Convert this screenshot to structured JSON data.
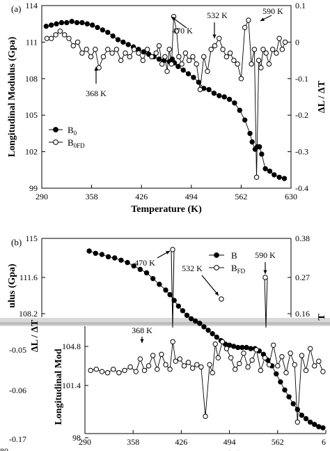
{
  "chart_data": [
    {
      "panel_label": "(a)",
      "type": "line",
      "xlabel": "Temperature (K)",
      "ylabel": "Longitudinal Modulus (Gpa)",
      "y2label": "ΔL / ΔT",
      "xlim": [
        290,
        630
      ],
      "ylim": [
        99,
        114
      ],
      "y2lim": [
        -0.4,
        0.1
      ],
      "xticks": [
        "290",
        "358",
        "426",
        "494",
        "562",
        "630"
      ],
      "yticks": [
        "99",
        "102",
        "105",
        "108",
        "111",
        "114"
      ],
      "y2ticks": [
        "-0.4",
        "-0.3",
        "-0.2",
        "-0.1",
        "0",
        "0.1"
      ],
      "legend": {
        "position": "lower-left",
        "entries": [
          {
            "main": "B",
            "sub": "0",
            "marker": "filled"
          },
          {
            "main": "B",
            "sub": "0FD",
            "marker": "open"
          }
        ]
      },
      "series": [
        {
          "marker": "filled",
          "axis": "left",
          "x": [
            296,
            303,
            310,
            317,
            324,
            331,
            338,
            345,
            352,
            359,
            366,
            373,
            380,
            387,
            394,
            401,
            408,
            415,
            422,
            429,
            436,
            443,
            450,
            457,
            464,
            468,
            471,
            476,
            483,
            490,
            497,
            504,
            511,
            518,
            525,
            532,
            539,
            546,
            553,
            560,
            567,
            574,
            577,
            581,
            584,
            587,
            590,
            595,
            601,
            607,
            614,
            621
          ],
          "y": [
            112.3,
            112.4,
            112.5,
            112.6,
            112.6,
            112.7,
            112.6,
            112.6,
            112.5,
            112.4,
            112.2,
            112.0,
            111.8,
            111.5,
            111.2,
            111.0,
            110.8,
            110.6,
            110.4,
            110.2,
            110.0,
            109.8,
            109.6,
            109.5,
            109.4,
            109.6,
            109.3,
            109.0,
            108.7,
            108.4,
            108.1,
            107.7,
            107.2,
            107.1,
            106.8,
            106.6,
            106.5,
            106.3,
            106.0,
            105.4,
            104.6,
            103.5,
            102.8,
            102.2,
            102.4,
            102.4,
            101.8,
            100.6,
            100.4,
            100.1,
            99.9,
            99.8
          ]
        },
        {
          "marker": "open",
          "axis": "right",
          "x": [
            297,
            303,
            309,
            315,
            321,
            327,
            333,
            339,
            345,
            351,
            357,
            363,
            368,
            374,
            380,
            386,
            392,
            398,
            404,
            410,
            416,
            422,
            428,
            434,
            440,
            446,
            450,
            454,
            458,
            461,
            464,
            467,
            470,
            474,
            477,
            481,
            486,
            491,
            496,
            501,
            506,
            511,
            516,
            521,
            526,
            532,
            537,
            542,
            547,
            552,
            557,
            562,
            567,
            572,
            576,
            580,
            583,
            586,
            589,
            592,
            596,
            600,
            605,
            610,
            614,
            618,
            622
          ],
          "y": [
            0.01,
            0.01,
            0.02,
            0.03,
            0.02,
            0.01,
            -0.01,
            0.0,
            -0.03,
            -0.02,
            -0.04,
            -0.02,
            -0.07,
            -0.04,
            -0.02,
            -0.03,
            -0.02,
            -0.05,
            -0.03,
            -0.04,
            -0.02,
            -0.03,
            -0.05,
            -0.02,
            -0.04,
            -0.03,
            -0.01,
            -0.06,
            -0.04,
            -0.08,
            -0.02,
            -0.06,
            0.07,
            0.03,
            -0.04,
            -0.06,
            -0.03,
            -0.05,
            -0.04,
            -0.06,
            -0.13,
            -0.04,
            -0.08,
            -0.02,
            -0.01,
            0.01,
            -0.02,
            -0.04,
            -0.03,
            -0.05,
            -0.06,
            -0.1,
            0.04,
            0.06,
            -0.06,
            -0.02,
            -0.37,
            -0.05,
            -0.07,
            -0.02,
            -0.03,
            -0.06,
            -0.02,
            -0.03,
            0.01,
            -0.02,
            0.0
          ]
        }
      ],
      "annotations": [
        "368 K",
        "470 K",
        "532 K",
        "590 K"
      ]
    },
    {
      "panel_label": "(b)",
      "type": "line",
      "xlabel": "Temperature (K)",
      "ylabel_visible": "ulus (Gpa)",
      "ylabel_lower": "Longitudinal Mod",
      "y2label_partial": "ΔL / ΔT",
      "y2label_fragment": "T",
      "xlim": [
        290,
        630
      ],
      "ylim": [
        98,
        115
      ],
      "xticks": [
        "290",
        "358",
        "426",
        "494",
        "562",
        "6"
      ],
      "yticks": [
        "98",
        "101.4",
        "104.8",
        "108.2",
        "111.6",
        "115"
      ],
      "y2ticks": [
        "0.16",
        "0.27",
        "0.38"
      ],
      "overlay_left_ticks": [
        "-0.05",
        "-0.06",
        "-0.17"
      ],
      "overlay_bottom_fragment": "80",
      "legend": {
        "position": "top-right",
        "entries": [
          {
            "main": "B",
            "sub": "",
            "marker": "filled"
          },
          {
            "main": "B",
            "sub": "FD",
            "marker": "open"
          }
        ]
      },
      "series": [
        {
          "marker": "filled",
          "axis": "left",
          "x": [
            296,
            305,
            314,
            323,
            332,
            341,
            350,
            359,
            368,
            377,
            386,
            395,
            404,
            410,
            416,
            422,
            428,
            434,
            440,
            446,
            452,
            458,
            464,
            470,
            476,
            482,
            488,
            494,
            500,
            506,
            512,
            518,
            524,
            530,
            536,
            542,
            548,
            554,
            560,
            566,
            572,
            578,
            584,
            590,
            596,
            602,
            608,
            614,
            620,
            626
          ],
          "y": [
            113.9,
            113.7,
            113.6,
            113.4,
            113.3,
            113.1,
            112.9,
            112.6,
            112.3,
            112.0,
            111.5,
            111.0,
            110.5,
            110.1,
            109.6,
            109.1,
            108.7,
            108.3,
            108.0,
            107.8,
            107.6,
            107.3,
            107.0,
            106.7,
            106.4,
            106.1,
            105.8,
            105.7,
            105.6,
            105.5,
            105.5,
            105.5,
            105.4,
            105.4,
            105.2,
            104.9,
            104.4,
            103.9,
            103.2,
            102.5,
            101.8,
            101.2,
            100.6,
            100.1,
            99.6,
            99.3,
            99.0,
            98.8,
            98.6,
            98.5
          ]
        },
        {
          "marker": "open",
          "axis": "left",
          "x": [
            298,
            306,
            314,
            322,
            330,
            338,
            346,
            354,
            362,
            368,
            374,
            380,
            386,
            392,
            398,
            404,
            410,
            414,
            418,
            424,
            430,
            436,
            442,
            448,
            454,
            460,
            466,
            470,
            474,
            478,
            484,
            490,
            496,
            502,
            508,
            514,
            520,
            526,
            532,
            538,
            544,
            550,
            556,
            562,
            568,
            574,
            580,
            586,
            590,
            596,
            602,
            608,
            614,
            620,
            626
          ],
          "y": [
            103.5,
            103.6,
            103.4,
            103.3,
            103.6,
            103.3,
            103.5,
            103.8,
            103.4,
            104.5,
            103.5,
            103.9,
            104.8,
            103.6,
            104.9,
            104.0,
            103.6,
            106.0,
            104.3,
            104.5,
            103.9,
            104.2,
            103.7,
            104.0,
            103.8,
            99.5,
            104.0,
            103.3,
            105.8,
            104.6,
            106.0,
            105.4,
            104.6,
            103.6,
            104.1,
            105.0,
            103.8,
            104.4,
            105.3,
            103.5,
            104.6,
            104.0,
            105.7,
            103.9,
            104.7,
            103.3,
            105.0,
            104.0,
            99.0,
            104.8,
            103.5,
            105.4,
            103.9,
            104.3,
            103.4
          ]
        }
      ],
      "annotations": [
        "368 K",
        "470 K",
        "532 K",
        "590 K"
      ]
    }
  ]
}
